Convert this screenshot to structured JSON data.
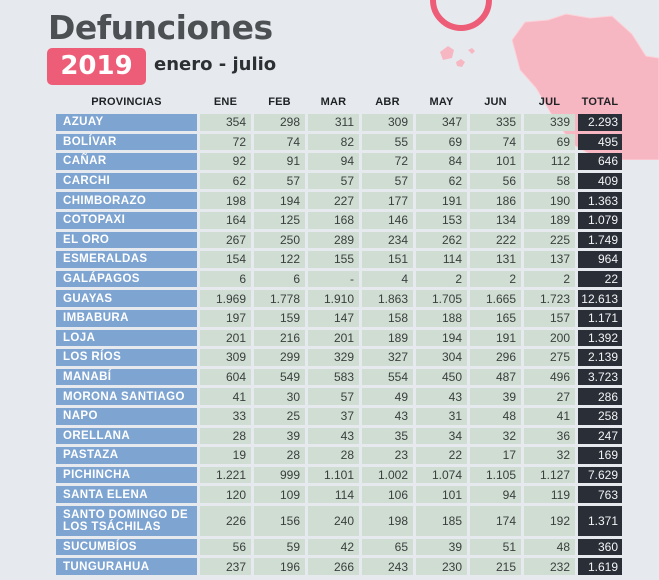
{
  "title": "Defunciones",
  "year": "2019",
  "period": "enero - julio",
  "colors": {
    "year_badge": "#ee5d77",
    "province_cell": "#7ea4d1",
    "value_cell": "#cfddd3",
    "total_cell": "#2a2e36",
    "map": "#f7b7c2",
    "ring": "#ee5d77"
  },
  "columns": [
    "PROVINCIAS",
    "ENE",
    "FEB",
    "MAR",
    "ABR",
    "MAY",
    "JUN",
    "JUL",
    "TOTAL"
  ],
  "rows": [
    {
      "province": "AZUAY",
      "values": [
        "354",
        "298",
        "311",
        "309",
        "347",
        "335",
        "339"
      ],
      "total": "2.293"
    },
    {
      "province": "BOLÍVAR",
      "values": [
        "72",
        "74",
        "82",
        "55",
        "69",
        "74",
        "69"
      ],
      "total": "495"
    },
    {
      "province": "CAÑAR",
      "values": [
        "92",
        "91",
        "94",
        "72",
        "84",
        "101",
        "112"
      ],
      "total": "646"
    },
    {
      "province": "CARCHI",
      "values": [
        "62",
        "57",
        "57",
        "57",
        "62",
        "56",
        "58"
      ],
      "total": "409"
    },
    {
      "province": "CHIMBORAZO",
      "values": [
        "198",
        "194",
        "227",
        "177",
        "191",
        "186",
        "190"
      ],
      "total": "1.363"
    },
    {
      "province": "COTOPAXI",
      "values": [
        "164",
        "125",
        "168",
        "146",
        "153",
        "134",
        "189"
      ],
      "total": "1.079"
    },
    {
      "province": "EL ORO",
      "values": [
        "267",
        "250",
        "289",
        "234",
        "262",
        "222",
        "225"
      ],
      "total": "1.749"
    },
    {
      "province": "ESMERALDAS",
      "values": [
        "154",
        "122",
        "155",
        "151",
        "114",
        "131",
        "137"
      ],
      "total": "964"
    },
    {
      "province": "GALÁPAGOS",
      "values": [
        "6",
        "6",
        "-",
        "4",
        "2",
        "2",
        "2"
      ],
      "total": "22"
    },
    {
      "province": "GUAYAS",
      "values": [
        "1.969",
        "1.778",
        "1.910",
        "1.863",
        "1.705",
        "1.665",
        "1.723"
      ],
      "total": "12.613"
    },
    {
      "province": "IMBABURA",
      "values": [
        "197",
        "159",
        "147",
        "158",
        "188",
        "165",
        "157"
      ],
      "total": "1.171"
    },
    {
      "province": "LOJA",
      "values": [
        "201",
        "216",
        "201",
        "189",
        "194",
        "191",
        "200"
      ],
      "total": "1.392"
    },
    {
      "province": "LOS RÍOS",
      "values": [
        "309",
        "299",
        "329",
        "327",
        "304",
        "296",
        "275"
      ],
      "total": "2.139"
    },
    {
      "province": "MANABÍ",
      "values": [
        "604",
        "549",
        "583",
        "554",
        "450",
        "487",
        "496"
      ],
      "total": "3.723"
    },
    {
      "province": "MORONA SANTIAGO",
      "values": [
        "41",
        "30",
        "57",
        "49",
        "43",
        "39",
        "27"
      ],
      "total": "286"
    },
    {
      "province": "NAPO",
      "values": [
        "33",
        "25",
        "37",
        "43",
        "31",
        "48",
        "41"
      ],
      "total": "258"
    },
    {
      "province": "ORELLANA",
      "values": [
        "28",
        "39",
        "43",
        "35",
        "34",
        "32",
        "36"
      ],
      "total": "247"
    },
    {
      "province": "PASTAZA",
      "values": [
        "19",
        "28",
        "28",
        "23",
        "22",
        "17",
        "32"
      ],
      "total": "169"
    },
    {
      "province": "PICHINCHA",
      "values": [
        "1.221",
        "999",
        "1.101",
        "1.002",
        "1.074",
        "1.105",
        "1.127"
      ],
      "total": "7.629"
    },
    {
      "province": "SANTA ELENA",
      "values": [
        "120",
        "109",
        "114",
        "106",
        "101",
        "94",
        "119"
      ],
      "total": "763"
    },
    {
      "province": "SANTO DOMINGO DE LOS TSÁCHILAS",
      "values": [
        "226",
        "156",
        "240",
        "198",
        "185",
        "174",
        "192"
      ],
      "total": "1.371"
    },
    {
      "province": "SUCUMBÍOS",
      "values": [
        "56",
        "59",
        "42",
        "65",
        "39",
        "51",
        "48"
      ],
      "total": "360"
    },
    {
      "province": "TUNGURAHUA",
      "values": [
        "237",
        "196",
        "266",
        "243",
        "230",
        "215",
        "232"
      ],
      "total": "1.619"
    }
  ]
}
